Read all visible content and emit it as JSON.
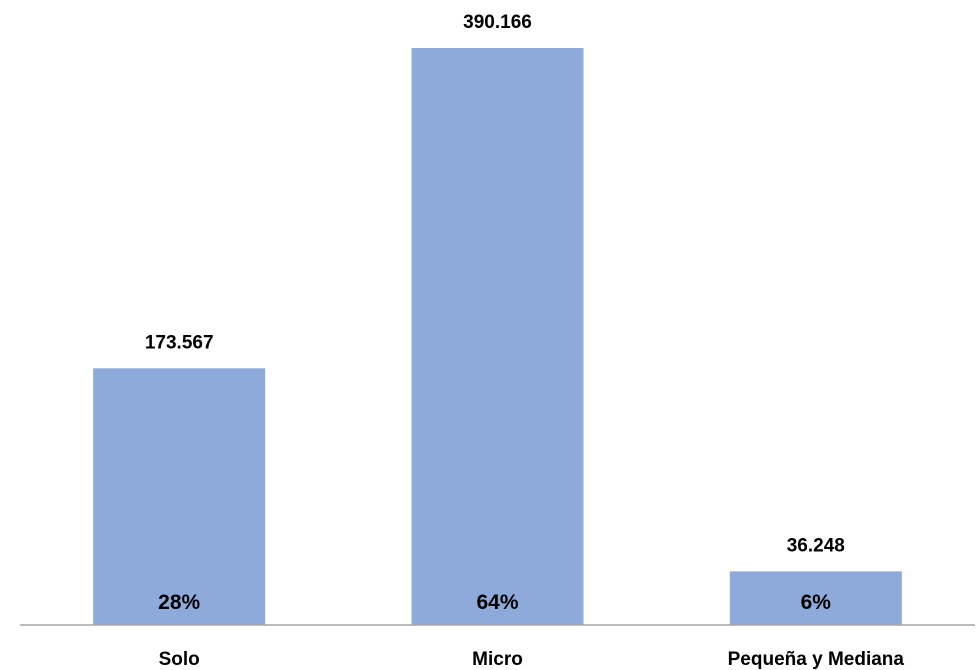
{
  "chart_data": {
    "type": "bar",
    "categories": [
      "Solo",
      "Micro",
      "Pequeña y Mediana"
    ],
    "values": [
      173567,
      390166,
      36248
    ],
    "value_labels": [
      "173.567",
      "390.166",
      "36.248"
    ],
    "percent_labels": [
      "28%",
      "64%",
      "6%"
    ],
    "title": "",
    "xlabel": "",
    "ylabel": "",
    "ylim": [
      0,
      400000
    ],
    "grid": false,
    "legend": "none",
    "bar_color": "#8eaadb",
    "axis_color": "#a6a6a6"
  }
}
